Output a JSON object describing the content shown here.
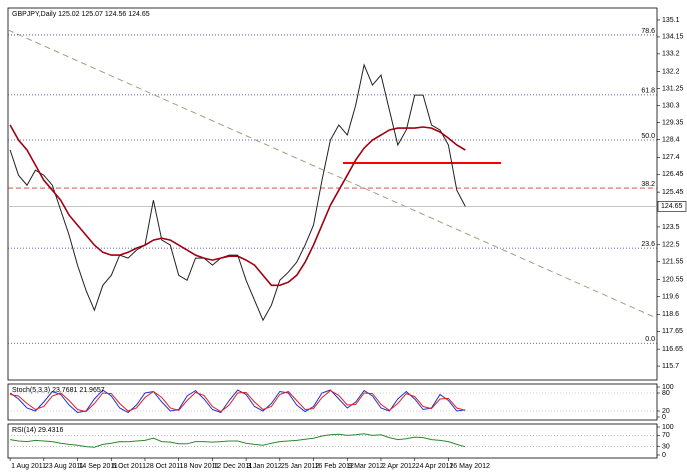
{
  "chart_data": [
    {
      "type": "line",
      "title": "GBPJPY,Daily  125.02 125.07 124.56 124.65",
      "x": [
        0,
        4,
        8,
        12,
        16,
        20,
        24,
        28,
        32,
        36,
        40,
        44,
        48,
        52,
        56,
        60,
        64,
        68,
        72,
        76,
        80,
        84,
        88,
        92,
        96,
        100,
        104,
        108,
        112,
        116,
        120,
        124,
        128,
        132,
        136,
        140,
        144,
        148,
        152,
        156,
        160,
        164,
        168,
        172,
        176,
        180,
        184,
        188,
        192,
        196,
        200,
        204,
        208,
        212,
        216
      ],
      "series": [
        {
          "name": "Close",
          "color": "#202020",
          "values": [
            127.81,
            126.4,
            125.84,
            126.68,
            126.4,
            125.84,
            124.44,
            123.04,
            121.36,
            119.95,
            118.83,
            120.23,
            120.79,
            121.92,
            121.75,
            122.2,
            122.48,
            125.0,
            122.76,
            122.48,
            120.79,
            120.51,
            121.75,
            121.75,
            121.36,
            121.75,
            121.92,
            121.92,
            120.51,
            119.39,
            118.27,
            119.11,
            120.51,
            120.96,
            121.52,
            122.48,
            123.6,
            126.12,
            128.37,
            129.21,
            128.65,
            130.33,
            132.58,
            131.45,
            132.01,
            130.05,
            128.09,
            128.93,
            130.89,
            130.89,
            129.21,
            128.93,
            128.09,
            125.56,
            124.65
          ]
        },
        {
          "name": "Moving Average",
          "color": "#a00010",
          "values": [
            129.21,
            128.37,
            127.81,
            126.97,
            126.12,
            125.56,
            125.0,
            124.16,
            123.6,
            123.04,
            122.48,
            122.08,
            121.92,
            121.92,
            122.08,
            122.31,
            122.48,
            122.76,
            122.87,
            122.76,
            122.48,
            122.2,
            121.92,
            121.75,
            121.64,
            121.75,
            121.86,
            121.86,
            121.64,
            121.36,
            120.79,
            120.23,
            120.23,
            120.4,
            120.79,
            121.52,
            122.48,
            123.6,
            124.72,
            125.56,
            126.4,
            127.25,
            127.92,
            128.37,
            128.65,
            128.93,
            129.04,
            129.04,
            129.04,
            129.1,
            129.04,
            128.82,
            128.48,
            128.09,
            127.81
          ]
        }
      ],
      "xlim": [
        -1,
        307
      ],
      "ylim": [
        114.92,
        135.77
      ],
      "yticks": [
        135.1,
        134.15,
        133.2,
        132.2,
        131.25,
        130.3,
        129.35,
        128.4,
        127.4,
        126.45,
        125.45,
        123.5,
        122.5,
        121.55,
        120.55,
        119.6,
        118.6,
        117.65,
        116.65,
        115.7
      ],
      "xticks": [
        {
          "value": 0,
          "label": "1 Aug 2011"
        },
        {
          "value": 16,
          "label": "23 Aug 2011"
        },
        {
          "value": 32,
          "label": "14 Sep 2011"
        },
        {
          "value": 48,
          "label": "6 Oct 2011"
        },
        {
          "value": 64,
          "label": "28 Oct 2011"
        },
        {
          "value": 80,
          "label": "18 Nov 2011"
        },
        {
          "value": 96,
          "label": "12 Dec 2011"
        },
        {
          "value": 112,
          "label": "3 Jan 2012"
        },
        {
          "value": 128,
          "label": "25 Jan 2012"
        },
        {
          "value": 144,
          "label": "16 Feb 2012"
        },
        {
          "value": 160,
          "label": "9 Mar 2012"
        },
        {
          "value": 176,
          "label": "2 Apr 2012"
        },
        {
          "value": 192,
          "label": "24 Apr 2012"
        },
        {
          "value": 208,
          "label": "16 May 2012"
        }
      ],
      "levels": [
        {
          "value": 134.26,
          "label": "78.6",
          "color": "#3030c0"
        },
        {
          "value": 130.9,
          "label": "61.8",
          "color": "#3030c0"
        },
        {
          "value": 128.37,
          "label": "50.0",
          "color": "#3030c0"
        },
        {
          "value": 125.68,
          "label": "38.2",
          "color": "#e03030"
        },
        {
          "value": 122.31,
          "label": "23.6",
          "color": "#3030c0"
        },
        {
          "value": 116.98,
          "label": "0.0",
          "color": "#3030c0"
        }
      ],
      "support": {
        "value": 127.08,
        "x": [
          158,
          233
        ],
        "color": "#ff0000"
      },
      "trend": {
        "x": [
          -1,
          307
        ],
        "y": [
          134.54,
          118.38
        ],
        "color": "#a0a080"
      },
      "last_price": 124.65
    },
    {
      "type": "line",
      "title": "Stoch(5,3,3) 23.7681 21.9657",
      "x": [
        0,
        4,
        8,
        12,
        16,
        20,
        24,
        28,
        32,
        36,
        40,
        44,
        48,
        52,
        56,
        60,
        64,
        68,
        72,
        76,
        80,
        84,
        88,
        92,
        96,
        100,
        104,
        108,
        112,
        116,
        120,
        124,
        128,
        132,
        136,
        140,
        144,
        148,
        152,
        156,
        160,
        164,
        168,
        172,
        176,
        180,
        184,
        188,
        192,
        196,
        200,
        204,
        208,
        212,
        216
      ],
      "series": [
        {
          "name": "Main",
          "color": "#2030d0",
          "values": [
            80,
            60,
            30,
            20,
            50,
            85,
            75,
            40,
            15,
            20,
            60,
            90,
            70,
            30,
            15,
            40,
            80,
            85,
            50,
            20,
            25,
            70,
            88,
            60,
            25,
            15,
            55,
            90,
            75,
            35,
            20,
            45,
            85,
            80,
            40,
            18,
            35,
            80,
            90,
            60,
            30,
            50,
            88,
            70,
            30,
            20,
            60,
            85,
            60,
            25,
            30,
            75,
            55,
            20,
            23.7681
          ]
        },
        {
          "name": "Signal",
          "color": "#e02020",
          "values": [
            75,
            70,
            45,
            25,
            35,
            70,
            80,
            55,
            25,
            18,
            45,
            80,
            78,
            45,
            20,
            30,
            65,
            85,
            65,
            30,
            22,
            55,
            82,
            72,
            35,
            18,
            40,
            80,
            82,
            50,
            25,
            35,
            75,
            85,
            55,
            25,
            28,
            65,
            88,
            72,
            40,
            42,
            80,
            78,
            42,
            22,
            45,
            78,
            68,
            35,
            28,
            60,
            62,
            30,
            21.9657
          ]
        }
      ],
      "xlim": [
        -1,
        307
      ],
      "ylim": [
        0,
        100
      ],
      "yticks": [
        100,
        80,
        20,
        0
      ]
    },
    {
      "type": "line",
      "title": "RSI(14) 29.4316",
      "x": [
        0,
        4,
        8,
        12,
        16,
        20,
        24,
        28,
        32,
        36,
        40,
        44,
        48,
        52,
        56,
        60,
        64,
        68,
        72,
        76,
        80,
        84,
        88,
        92,
        96,
        100,
        104,
        108,
        112,
        116,
        120,
        124,
        128,
        132,
        136,
        140,
        144,
        148,
        152,
        156,
        160,
        164,
        168,
        172,
        176,
        180,
        184,
        188,
        192,
        196,
        200,
        204,
        208,
        212,
        216
      ],
      "series": [
        {
          "name": "RSI",
          "color": "#2a8a2a",
          "values": [
            55,
            50,
            48,
            52,
            50,
            48,
            42,
            38,
            35,
            30,
            28,
            38,
            42,
            48,
            47,
            50,
            52,
            60,
            48,
            46,
            40,
            40,
            48,
            48,
            46,
            48,
            50,
            50,
            42,
            38,
            35,
            42,
            48,
            50,
            52,
            56,
            60,
            68,
            72,
            74,
            70,
            72,
            76,
            70,
            72,
            62,
            55,
            58,
            64,
            62,
            55,
            52,
            48,
            38,
            29.4316
          ]
        }
      ],
      "xlim": [
        -1,
        307
      ],
      "ylim": [
        0,
        100
      ],
      "yticks": [
        100,
        70,
        30,
        0
      ]
    }
  ]
}
